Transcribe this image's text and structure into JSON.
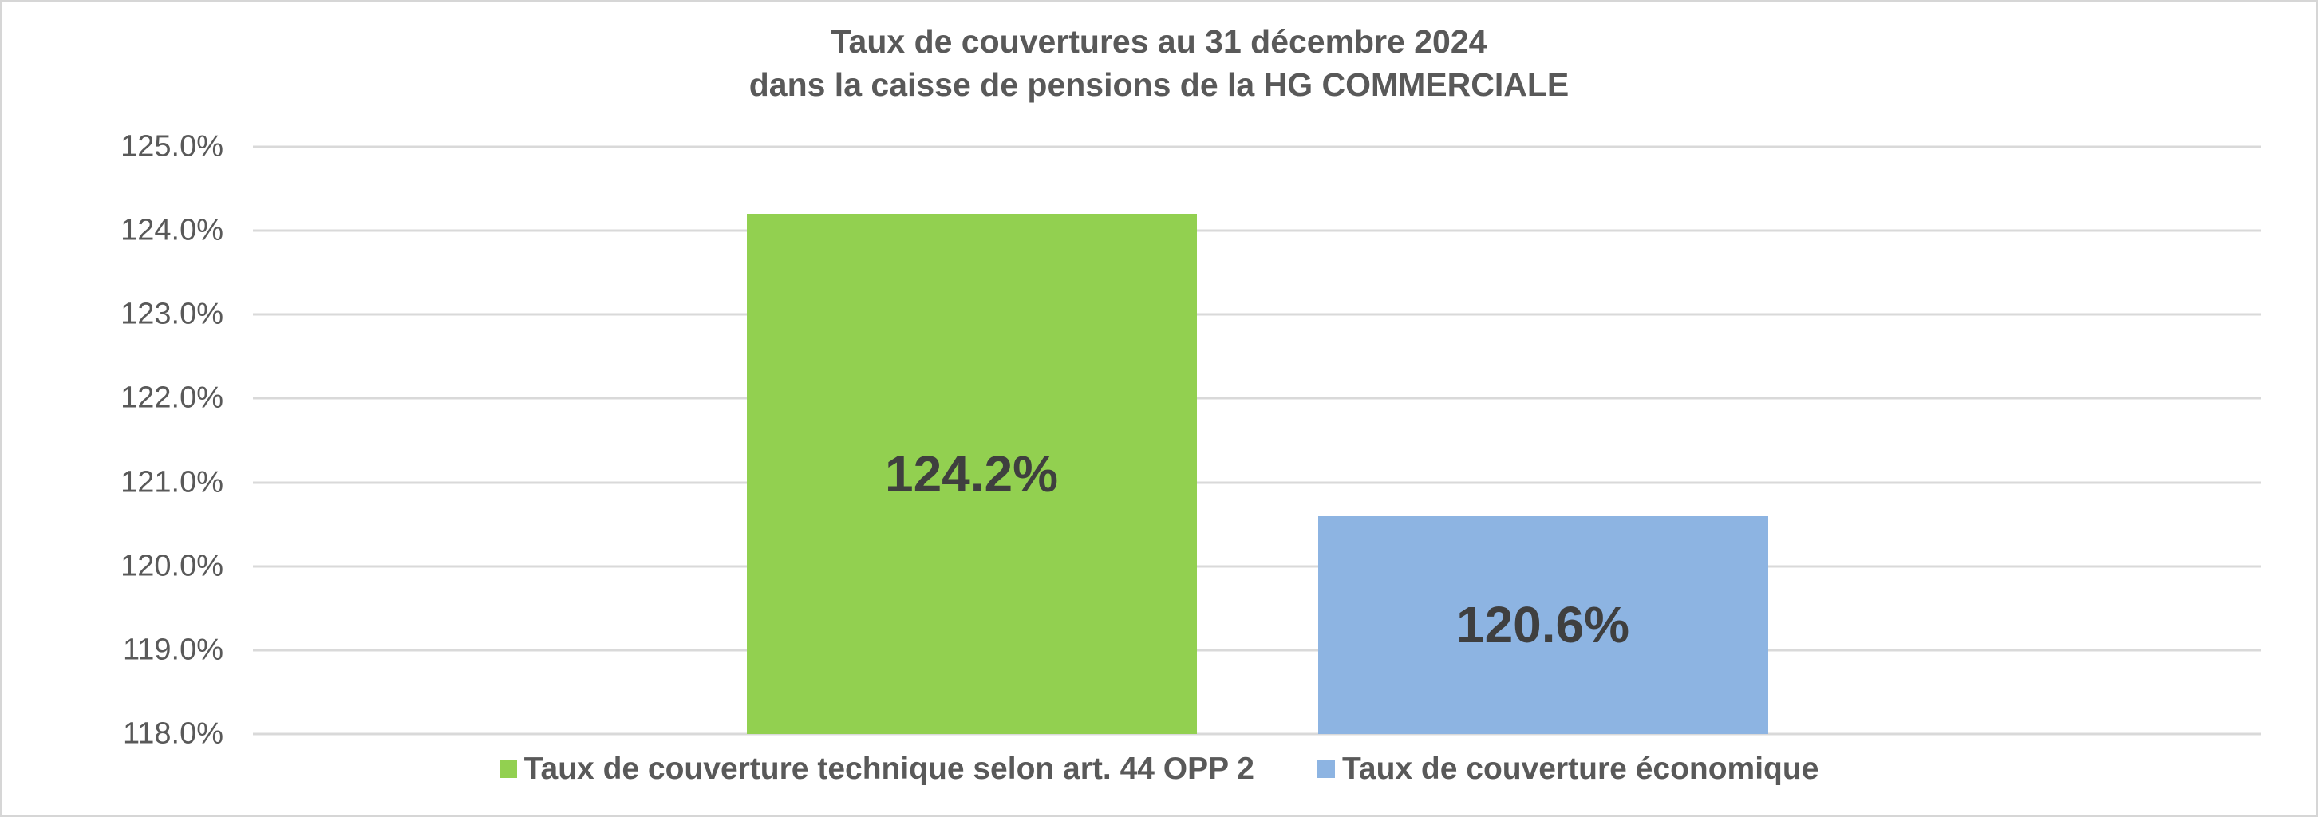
{
  "chart_data": {
    "type": "bar",
    "title_lines": [
      "Taux de couvertures au 31 décembre 2024",
      "dans la caisse de pensions de la HG COMMERCIALE"
    ],
    "series": [
      {
        "name": "Taux de couverture technique selon art. 44 OPP 2",
        "value": 124.2,
        "label": "124.2%",
        "color": "#92D050"
      },
      {
        "name": "Taux de couverture économique",
        "value": 120.6,
        "label": "120.6%",
        "color": "#8DB4E2"
      }
    ],
    "y_axis": {
      "min": 118,
      "max": 125,
      "step": 1,
      "tick_labels": [
        "125.0%",
        "124.0%",
        "123.0%",
        "122.0%",
        "121.0%",
        "120.0%",
        "119.0%",
        "118.0%"
      ]
    },
    "grid": true,
    "legend_position": "bottom"
  },
  "colors": {
    "title_text": "#595959",
    "axis_text": "#595959",
    "legend_text": "#595959",
    "data_label_text": "#3F3F3F",
    "gridline": "#D9D9D9",
    "border": "#D6D6D6",
    "background": "#FFFFFF"
  }
}
